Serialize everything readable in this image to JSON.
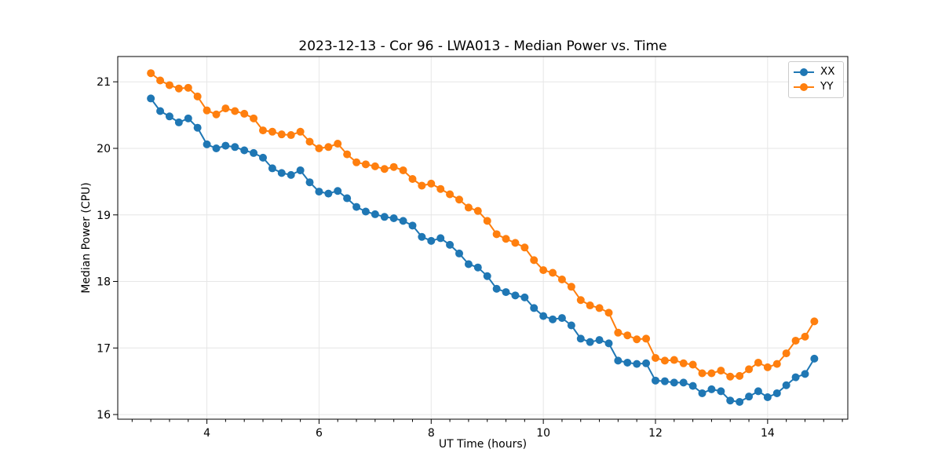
{
  "chart_data": {
    "type": "line",
    "title": "2023-12-13 - Cor 96 - LWA013 - Median Power vs. Time",
    "xlabel": "UT Time (hours)",
    "ylabel": "Median Power (CPU)",
    "xlim": [
      2.41,
      15.43
    ],
    "ylim": [
      15.93,
      21.38
    ],
    "xticks": [
      4,
      6,
      8,
      10,
      12,
      14
    ],
    "xtick_labels": [
      "4",
      "6",
      "8",
      "10",
      "12",
      "14"
    ],
    "x_minor_step": 0.33333,
    "yticks": [
      16,
      17,
      18,
      19,
      20,
      21
    ],
    "ytick_labels": [
      "16",
      "17",
      "18",
      "19",
      "20",
      "21"
    ],
    "grid": true,
    "grid_color": "#e6e6e6",
    "legend_position": "upper right",
    "x": [
      3.0,
      3.167,
      3.333,
      3.5,
      3.667,
      3.833,
      4.0,
      4.167,
      4.333,
      4.5,
      4.667,
      4.833,
      5.0,
      5.167,
      5.333,
      5.5,
      5.667,
      5.833,
      6.0,
      6.167,
      6.333,
      6.5,
      6.667,
      6.833,
      7.0,
      7.167,
      7.333,
      7.5,
      7.667,
      7.833,
      8.0,
      8.167,
      8.333,
      8.5,
      8.667,
      8.833,
      9.0,
      9.167,
      9.333,
      9.5,
      9.667,
      9.833,
      10.0,
      10.167,
      10.333,
      10.5,
      10.667,
      10.833,
      11.0,
      11.167,
      11.333,
      11.5,
      11.667,
      11.833,
      12.0,
      12.167,
      12.333,
      12.5,
      12.667,
      12.833,
      13.0,
      13.167,
      13.333,
      13.5,
      13.667,
      13.833,
      14.0,
      14.167,
      14.333,
      14.5,
      14.667,
      14.833
    ],
    "series": [
      {
        "name": "XX",
        "color": "#1f77b4",
        "values": [
          20.75,
          20.56,
          20.48,
          20.39,
          20.45,
          20.31,
          20.06,
          20.0,
          20.04,
          20.02,
          19.97,
          19.93,
          19.86,
          19.7,
          19.63,
          19.6,
          19.67,
          19.49,
          19.35,
          19.32,
          19.36,
          19.25,
          19.12,
          19.05,
          19.01,
          18.97,
          18.95,
          18.91,
          18.84,
          18.67,
          18.61,
          18.65,
          18.55,
          18.42,
          18.26,
          18.21,
          18.08,
          17.89,
          17.84,
          17.79,
          17.76,
          17.6,
          17.48,
          17.43,
          17.45,
          17.34,
          17.14,
          17.09,
          17.12,
          17.07,
          16.81,
          16.78,
          16.76,
          16.77,
          16.51,
          16.5,
          16.48,
          16.48,
          16.43,
          16.32,
          16.38,
          16.35,
          16.21,
          16.19,
          16.27,
          16.35,
          16.26,
          16.32,
          16.44,
          16.56,
          16.61,
          16.84
        ]
      },
      {
        "name": "YY",
        "color": "#ff7f0e",
        "values": [
          21.13,
          21.02,
          20.95,
          20.9,
          20.91,
          20.78,
          20.57,
          20.51,
          20.6,
          20.56,
          20.52,
          20.45,
          20.27,
          20.25,
          20.21,
          20.2,
          20.25,
          20.1,
          20.0,
          20.02,
          20.07,
          19.91,
          19.79,
          19.76,
          19.73,
          19.69,
          19.72,
          19.67,
          19.54,
          19.44,
          19.47,
          19.39,
          19.31,
          19.23,
          19.11,
          19.06,
          18.91,
          18.71,
          18.64,
          18.58,
          18.51,
          18.32,
          18.17,
          18.13,
          18.03,
          17.92,
          17.72,
          17.64,
          17.6,
          17.53,
          17.23,
          17.19,
          17.13,
          17.14,
          16.85,
          16.81,
          16.82,
          16.77,
          16.75,
          16.62,
          16.62,
          16.66,
          16.57,
          16.58,
          16.68,
          16.78,
          16.71,
          16.76,
          16.92,
          17.11,
          17.17,
          17.4
        ]
      }
    ]
  }
}
